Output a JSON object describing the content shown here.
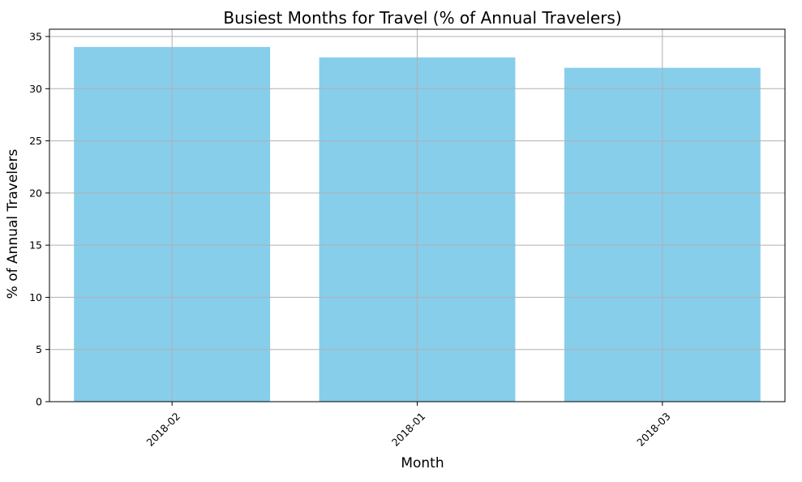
{
  "chart_data": {
    "type": "bar",
    "title": "Busiest Months for Travel (% of Annual Travelers)",
    "xlabel": "Month",
    "ylabel": "% of Annual Travelers",
    "categories": [
      "2018-02",
      "2018-01",
      "2018-03"
    ],
    "values": [
      34,
      33,
      32
    ],
    "ylim": [
      0,
      35.7
    ],
    "yticks": [
      0,
      5,
      10,
      15,
      20,
      25,
      30,
      35
    ],
    "grid": true,
    "bar_color": "#87ceeb",
    "grid_color": "#b0b0b0",
    "xtick_rotation": 45
  }
}
